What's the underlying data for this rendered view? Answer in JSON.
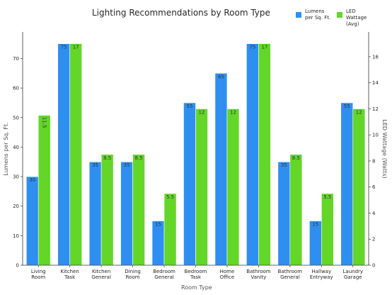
{
  "chart_data": {
    "type": "bar",
    "title": "Lighting Recommendations by Room Type",
    "xlabel": "Room Type",
    "ylabel_left": "Lumens per Sq. Ft.",
    "ylabel_right": "LED Wattage (Watts)",
    "categories": [
      [
        "Living",
        "Room"
      ],
      [
        "Kitchen",
        "Task"
      ],
      [
        "Kitchen",
        "General"
      ],
      [
        "Dining",
        "Room"
      ],
      [
        "Bedroom",
        "General"
      ],
      [
        "Bedroom",
        "Task"
      ],
      [
        "Home",
        "Office"
      ],
      [
        "Bathroom",
        "Vanity"
      ],
      [
        "Bathroom",
        "General"
      ],
      [
        "Hallway",
        "Entryway"
      ],
      [
        "Laundry",
        "Garage"
      ]
    ],
    "series": [
      {
        "name": "Lumens\nper Sq. Ft.",
        "axis": "left",
        "color": "#2e8ff0",
        "values": [
          30,
          75,
          35,
          35,
          15,
          55,
          65,
          75,
          35,
          15,
          55
        ],
        "labels": [
          "30",
          "75",
          "35",
          "35",
          "15",
          "55",
          "65",
          "75",
          "35",
          "15",
          "55"
        ]
      },
      {
        "name": "LED\nWattage\n(Avg)",
        "axis": "right",
        "color": "#63d628",
        "values": [
          11.5,
          17,
          8.5,
          8.5,
          5.5,
          12,
          12,
          17,
          8.5,
          5.5,
          12
        ],
        "labels": [
          "11.5",
          "17",
          "8.5",
          "8.5",
          "5.5",
          "12",
          "12",
          "17",
          "8.5",
          "5.5",
          "12"
        ]
      }
    ],
    "ylim_left": [
      0,
      79
    ],
    "yticks_left": [
      0,
      10,
      20,
      30,
      40,
      50,
      60,
      70
    ],
    "ylim_right": [
      0,
      17.9
    ],
    "yticks_right": [
      0,
      2,
      4,
      6,
      8,
      10,
      12,
      14,
      16
    ],
    "grid": false,
    "legend_position": "top-right"
  }
}
